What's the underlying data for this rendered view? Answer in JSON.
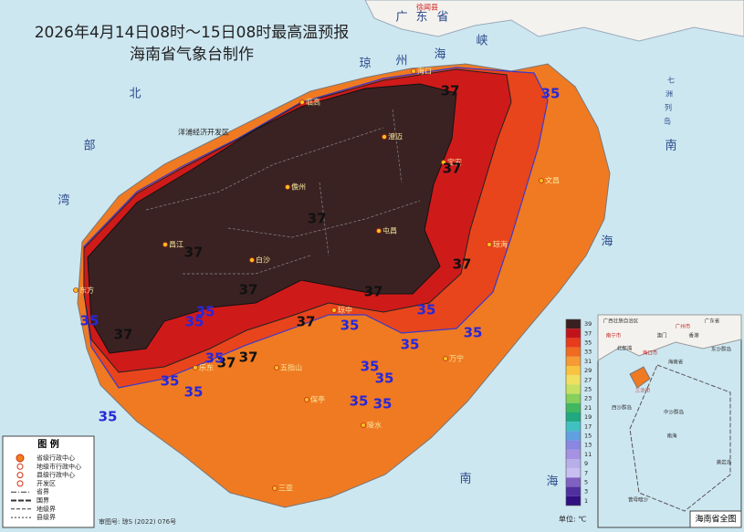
{
  "header": {
    "title": "2026年4月14日08时～15日08时最高温预报",
    "subtitle": "海南省气象台制作"
  },
  "places": [
    "海口",
    "临高",
    "澄迈",
    "定安",
    "文昌",
    "儋州",
    "屯昌",
    "琼海",
    "昌江",
    "白沙",
    "东方",
    "琼中",
    "万宁",
    "乐东",
    "五指山",
    "保亭",
    "陵水",
    "三亚",
    "洋浦经济开发区"
  ],
  "region_labels": [
    "徐闻县",
    "广",
    "东",
    "省",
    "琼",
    "州",
    "海",
    "峡",
    "北",
    "部",
    "湾",
    "南",
    "海",
    "南",
    "海",
    "七",
    "洲",
    "列",
    "岛"
  ],
  "contour_labels": [
    37,
    37,
    37,
    37,
    37,
    37,
    37,
    37,
    37,
    37,
    37,
    35,
    35,
    35,
    35,
    35,
    35,
    35,
    35,
    35,
    35,
    35,
    35,
    35,
    35,
    35,
    35
  ],
  "colorbar": {
    "ticks": [
      39,
      37,
      35,
      33,
      31,
      29,
      27,
      25,
      23,
      21,
      19,
      17,
      15,
      13,
      11,
      9,
      7,
      5,
      3,
      1
    ],
    "colors": [
      "#3a2020",
      "#c0141a",
      "#e83a1c",
      "#f06a20",
      "#f59a34",
      "#f8c440",
      "#f0e060",
      "#c8e060",
      "#86d05c",
      "#40b860",
      "#20a880",
      "#40c0c0",
      "#60a0e0",
      "#8a86e2",
      "#a592e2",
      "#b8aeea",
      "#c8bef2",
      "#8060c0",
      "#5030a0",
      "#301080"
    ],
    "unit": "单位: ℃"
  },
  "legend": {
    "title": "图 例",
    "items": [
      "省级行政中心",
      "地级市行政中心",
      "县级行政中心",
      "开发区",
      "省界",
      "国界",
      "地级界",
      "县级界"
    ]
  },
  "inset": {
    "title": "海南省全图",
    "labels": [
      "广西壮族自治区",
      "广东省",
      "南宁市",
      "广州市",
      "澳门",
      "香港",
      "海口市",
      "北部湾",
      "海南省",
      "东沙群岛",
      "西沙群岛",
      "中沙群岛",
      "三沙市",
      "南海",
      "黄岩岛",
      "曾母暗沙"
    ]
  },
  "footer": "审图号: 琼S (2022) 076号"
}
